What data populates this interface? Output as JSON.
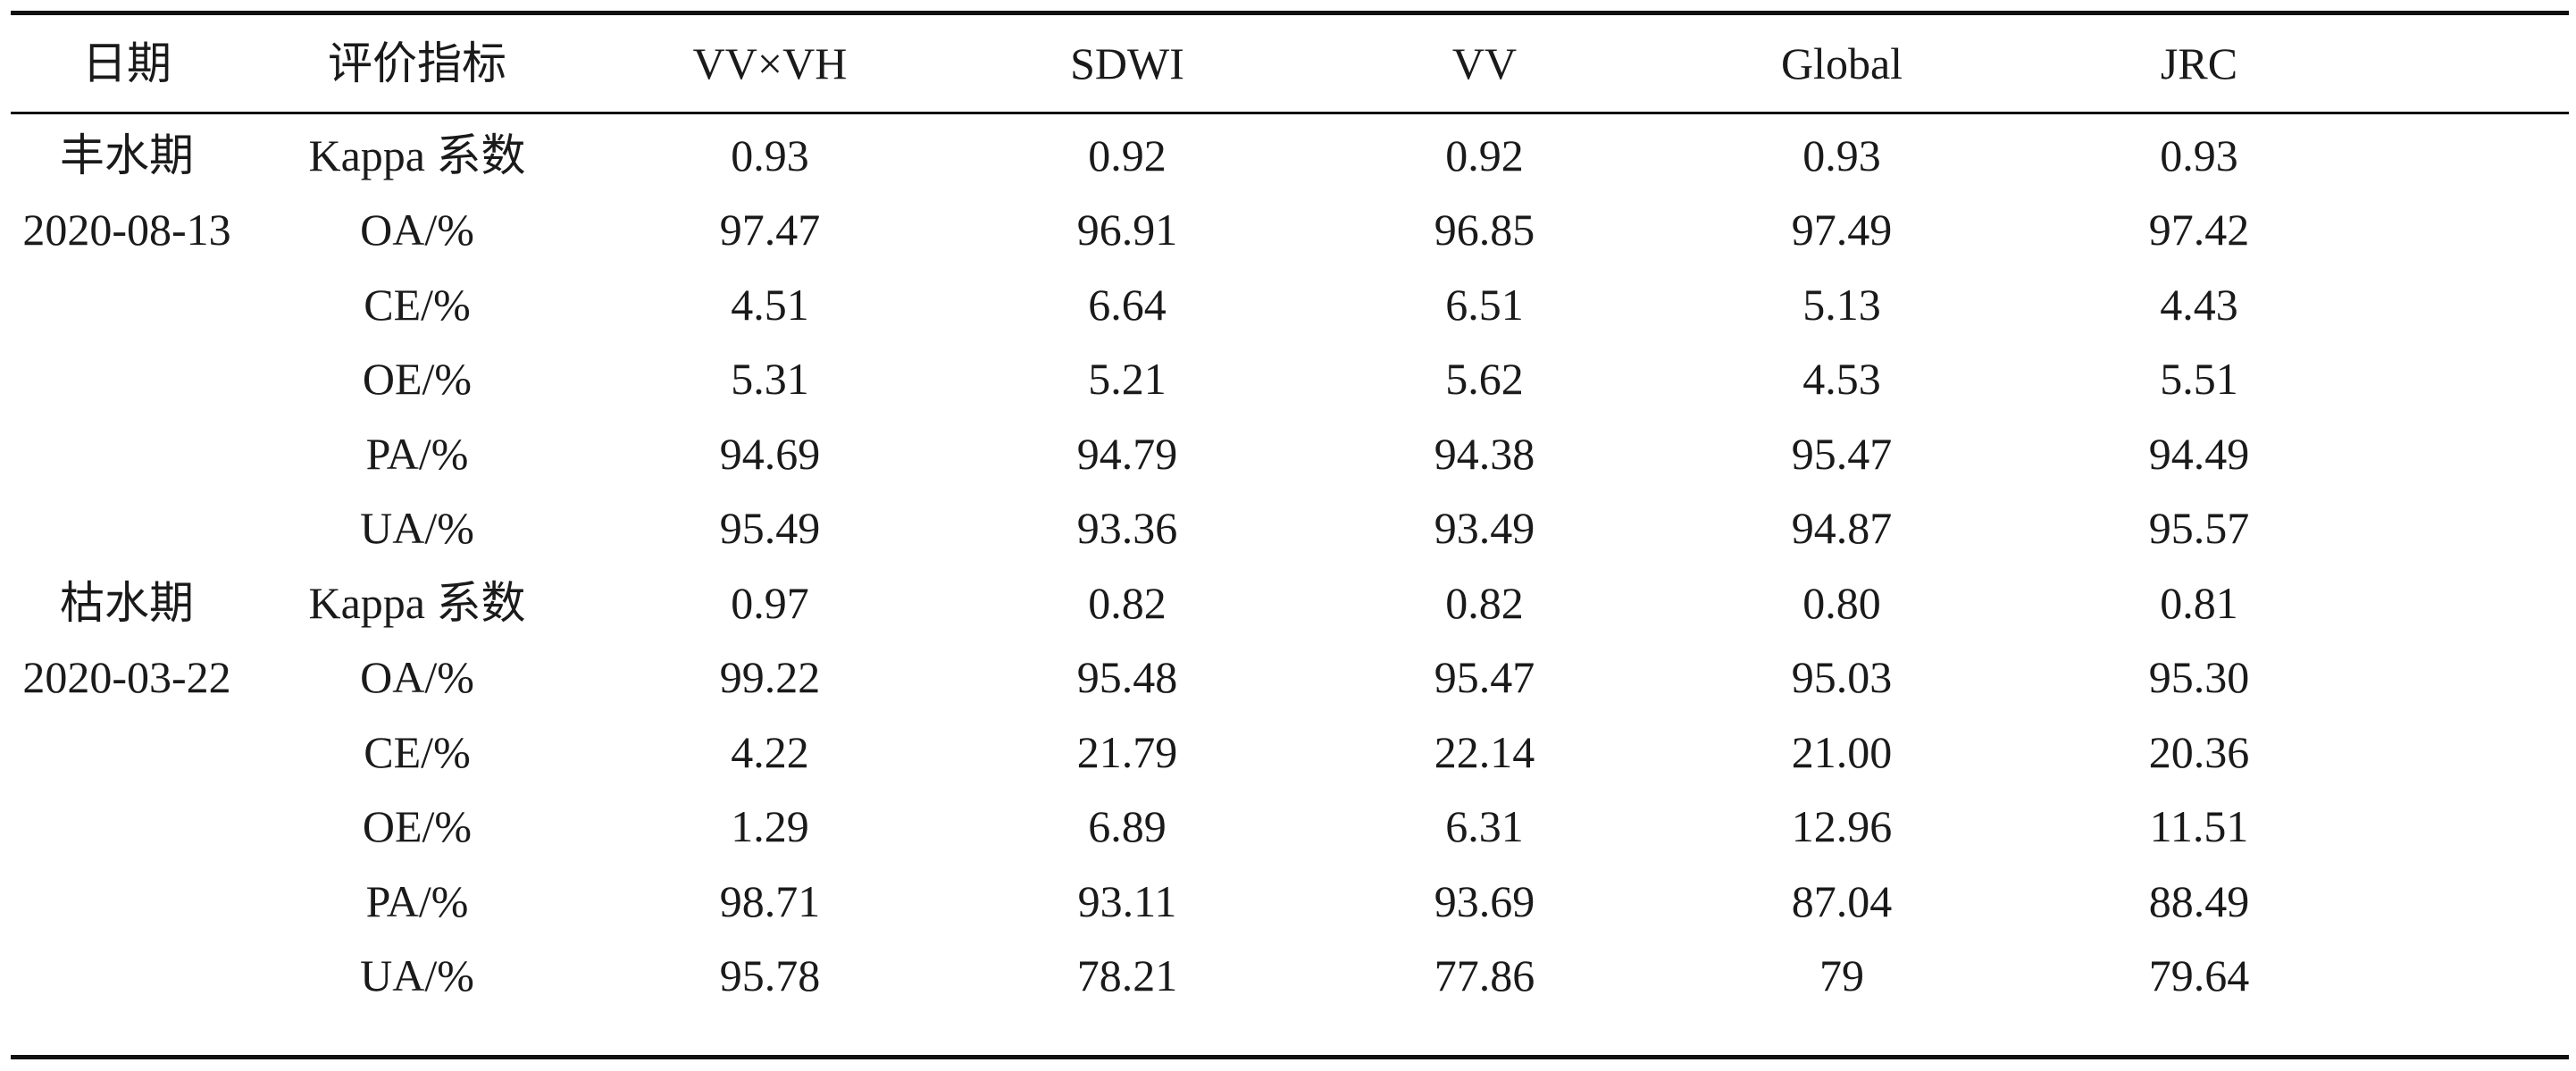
{
  "header": {
    "date": "日期",
    "metric": "评价指标",
    "columns": [
      "VV×VH",
      "SDWI",
      "VV",
      "Global",
      "JRC"
    ]
  },
  "rows": [
    {
      "date": "丰水期",
      "metric": "Kappa 系数",
      "values": [
        "0.93",
        "0.92",
        "0.92",
        "0.93",
        "0.93"
      ]
    },
    {
      "date": "2020-08-13",
      "metric": "OA/%",
      "values": [
        "97.47",
        "96.91",
        "96.85",
        "97.49",
        "97.42"
      ]
    },
    {
      "date": "",
      "metric": "CE/%",
      "values": [
        "4.51",
        "6.64",
        "6.51",
        "5.13",
        "4.43"
      ]
    },
    {
      "date": "",
      "metric": "OE/%",
      "values": [
        "5.31",
        "5.21",
        "5.62",
        "4.53",
        "5.51"
      ]
    },
    {
      "date": "",
      "metric": "PA/%",
      "values": [
        "94.69",
        "94.79",
        "94.38",
        "95.47",
        "94.49"
      ]
    },
    {
      "date": "",
      "metric": "UA/%",
      "values": [
        "95.49",
        "93.36",
        "93.49",
        "94.87",
        "95.57"
      ]
    },
    {
      "date": "枯水期",
      "metric": "Kappa 系数",
      "values": [
        "0.97",
        "0.82",
        "0.82",
        "0.80",
        "0.81"
      ]
    },
    {
      "date": "2020-03-22",
      "metric": "OA/%",
      "values": [
        "99.22",
        "95.48",
        "95.47",
        "95.03",
        "95.30"
      ]
    },
    {
      "date": "",
      "metric": "CE/%",
      "values": [
        "4.22",
        "21.79",
        "22.14",
        "21.00",
        "20.36"
      ]
    },
    {
      "date": "",
      "metric": "OE/%",
      "values": [
        "1.29",
        "6.89",
        "6.31",
        "12.96",
        "11.51"
      ]
    },
    {
      "date": "",
      "metric": "PA/%",
      "values": [
        "98.71",
        "93.11",
        "93.69",
        "87.04",
        "88.49"
      ]
    },
    {
      "date": "",
      "metric": "UA/%",
      "values": [
        "95.78",
        "78.21",
        "77.86",
        "79",
        "79.64"
      ]
    }
  ]
}
